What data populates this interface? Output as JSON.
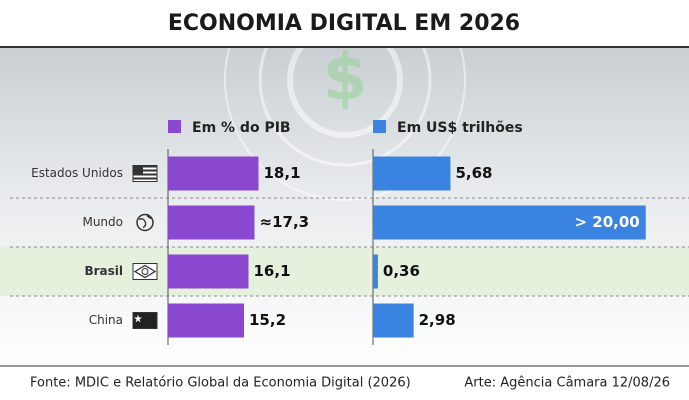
{
  "chart_data": {
    "type": "bar",
    "title": "ECONOMIA DIGITAL EM 2026",
    "categories": [
      "Estados Unidos",
      "Mundo",
      "Brasil",
      "China"
    ],
    "highlight": [
      false,
      false,
      true,
      false
    ],
    "series": [
      {
        "name": "Em % do PIB",
        "color": "#8a47cf",
        "values": [
          18.1,
          17.3,
          16.1,
          15.2
        ],
        "value_labels": [
          "18,1",
          "≈17,3",
          "16,1",
          "15,2"
        ],
        "xlim": [
          0,
          20
        ]
      },
      {
        "name": "Em US$ trilhões",
        "color": "#3b83e0",
        "values": [
          5.68,
          20.0,
          0.36,
          2.98
        ],
        "value_labels": [
          "5,68",
          "> 20,00",
          "0,36",
          "2,98"
        ],
        "xlim": [
          0,
          22
        ]
      }
    ],
    "source": "Fonte: MDIC e Relatório Global da Economia Digital (2026)",
    "credit": "Arte: Agência Câmara 12/08/26"
  }
}
